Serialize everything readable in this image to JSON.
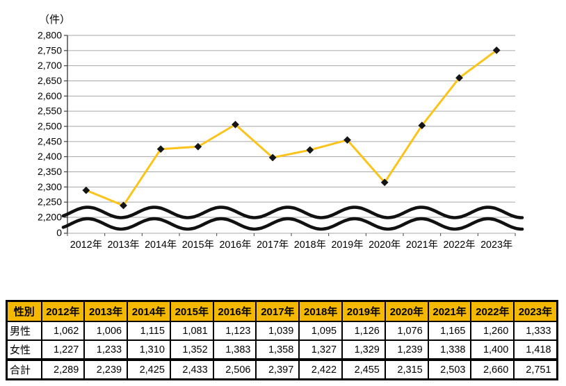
{
  "chart_data": {
    "type": "line",
    "title": "",
    "unit": "（件）",
    "categories": [
      "2012年",
      "2013年",
      "2014年",
      "2015年",
      "2016年",
      "2017年",
      "2018年",
      "2019年",
      "2020年",
      "2021年",
      "2022年",
      "2023年"
    ],
    "series": [
      {
        "name": "合計",
        "values": [
          2289,
          2239,
          2425,
          2433,
          2506,
          2397,
          2422,
          2455,
          2315,
          2503,
          2660,
          2751
        ]
      }
    ],
    "y_axis_ticks": [
      0,
      2200,
      2250,
      2300,
      2350,
      2400,
      2450,
      2500,
      2550,
      2600,
      2650,
      2700,
      2750,
      2800
    ],
    "visible_value_range": [
      2200,
      2800
    ],
    "axis_break": true,
    "axis_break_between": [
      0,
      2200
    ],
    "grid": true,
    "legend": "none",
    "marker": "black-diamond",
    "colors": {
      "line": "#FCC319",
      "marker": "#151515",
      "grid": "#A6A6A6",
      "axis": "#404040",
      "break_wave": "#111111",
      "tick_text": "#000000"
    }
  },
  "table": {
    "header": [
      "性別",
      "2012年",
      "2013年",
      "2014年",
      "2015年",
      "2016年",
      "2017年",
      "2018年",
      "2019年",
      "2020年",
      "2021年",
      "2022年",
      "2023年"
    ],
    "rows": [
      {
        "label": "男性",
        "values": [
          "1,062",
          "1,006",
          "1,115",
          "1,081",
          "1,123",
          "1,039",
          "1,095",
          "1,126",
          "1,076",
          "1,165",
          "1,260",
          "1,333"
        ],
        "is_total": false
      },
      {
        "label": "女性",
        "values": [
          "1,227",
          "1,233",
          "1,310",
          "1,352",
          "1,383",
          "1,358",
          "1,327",
          "1,329",
          "1,239",
          "1,338",
          "1,400",
          "1,418"
        ],
        "is_total": false
      },
      {
        "label": "合計",
        "values": [
          "2,289",
          "2,239",
          "2,425",
          "2,433",
          "2,506",
          "2,397",
          "2,422",
          "2,455",
          "2,315",
          "2,503",
          "2,660",
          "2,751"
        ],
        "is_total": true
      }
    ],
    "header_bg": "#F5B800",
    "header_text_color": "#000000"
  }
}
